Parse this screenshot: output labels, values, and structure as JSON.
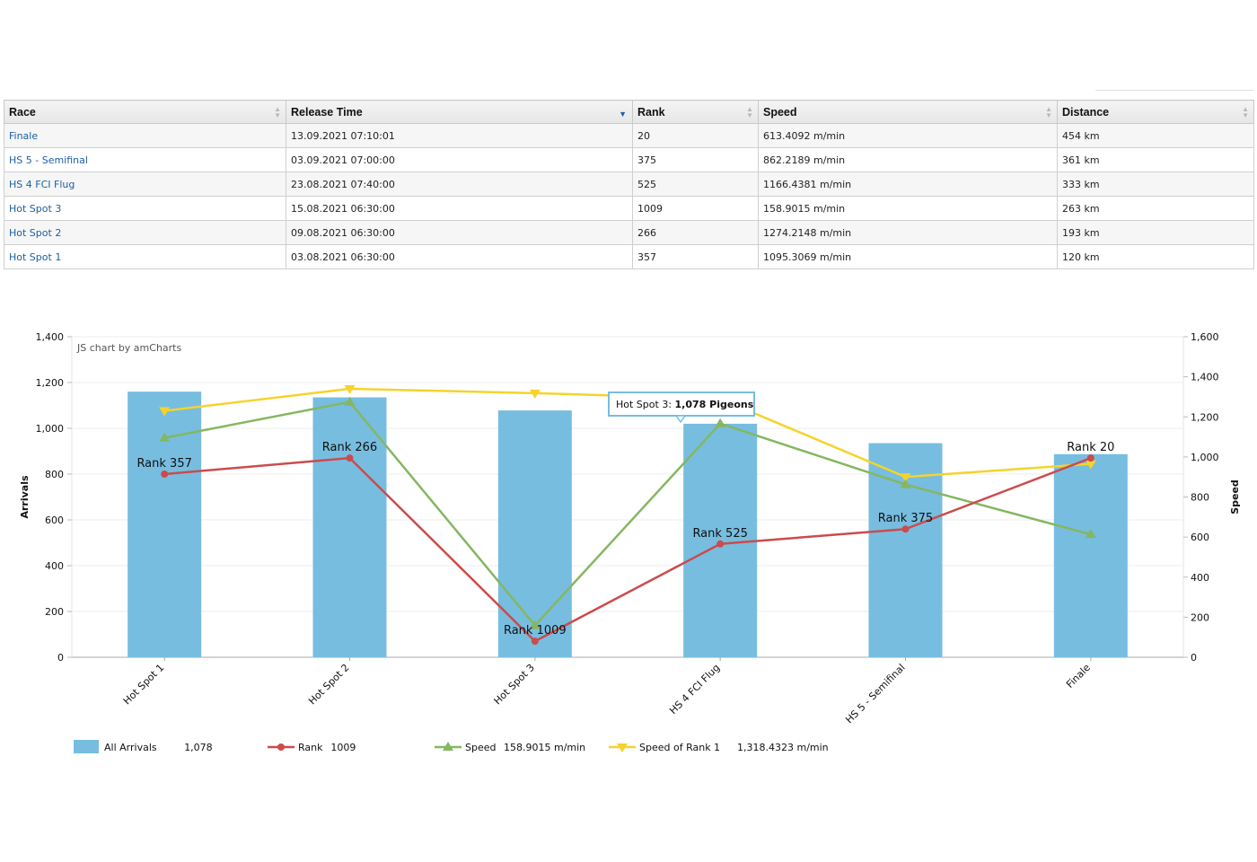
{
  "table": {
    "columns": [
      "Race",
      "Release Time",
      "Rank",
      "Speed",
      "Distance"
    ],
    "rows": [
      {
        "race": "Finale",
        "release": "13.09.2021 07:10:01",
        "rank": "20",
        "speed": "613.4092 m/min",
        "distance": "454 km"
      },
      {
        "race": "HS 5 - Semifinal",
        "release": "03.09.2021 07:00:00",
        "rank": "375",
        "speed": "862.2189 m/min",
        "distance": "361 km"
      },
      {
        "race": "HS 4 FCI Flug",
        "release": "23.08.2021 07:40:00",
        "rank": "525",
        "speed": "1166.4381 m/min",
        "distance": "333 km"
      },
      {
        "race": "Hot Spot 3",
        "release": "15.08.2021 06:30:00",
        "rank": "1009",
        "speed": "158.9015 m/min",
        "distance": "263 km"
      },
      {
        "race": "Hot Spot 2",
        "release": "09.08.2021 06:30:00",
        "rank": "266",
        "speed": "1274.2148 m/min",
        "distance": "193 km"
      },
      {
        "race": "Hot Spot 1",
        "release": "03.08.2021 06:30:00",
        "rank": "357",
        "speed": "1095.3069 m/min",
        "distance": "120 km"
      }
    ]
  },
  "chart_data": {
    "type": "bar",
    "credit": "JS chart by amCharts",
    "categories": [
      "Hot Spot 1",
      "Hot Spot 2",
      "Hot Spot 3",
      "HS 4 FCI Flug",
      "HS 5 - Semifinal",
      "Finale"
    ],
    "ylabel_left": "Arrivals",
    "ylabel_right": "Speed",
    "ylim_left": [
      0,
      1400
    ],
    "yticks_left": [
      "0",
      "200",
      "400",
      "600",
      "800",
      "1,000",
      "1,200",
      "1,400"
    ],
    "ylim_right": [
      0,
      1600
    ],
    "yticks_right": [
      "0",
      "200",
      "400",
      "600",
      "800",
      "1,000",
      "1,200",
      "1,400",
      "1,600"
    ],
    "series": [
      {
        "name": "All Arrivals",
        "type": "bar",
        "axis": "left",
        "color": "#77bde0",
        "values": [
          1160,
          1135,
          1078,
          1020,
          935,
          887
        ]
      },
      {
        "name": "Rank",
        "type": "line",
        "axis": "left",
        "color": "#cc4b4c",
        "marker": "circle",
        "values": [
          800,
          870,
          70,
          495,
          560,
          870
        ],
        "labels": [
          "Rank 357",
          "Rank 266",
          "Rank 1009",
          "Rank 525",
          "Rank 375",
          "Rank 20"
        ]
      },
      {
        "name": "Speed",
        "type": "line",
        "axis": "right",
        "color": "#84b761",
        "marker": "triangle-up",
        "values": [
          1095.3069,
          1274.2148,
          158.9015,
          1166.4381,
          862.2189,
          613.4092
        ]
      },
      {
        "name": "Speed of Rank 1",
        "type": "line",
        "axis": "right",
        "color": "#f6d32b",
        "marker": "triangle-down",
        "values": [
          1230,
          1340,
          1318.4323,
          1290,
          900,
          965
        ]
      }
    ],
    "tooltip": {
      "label": "Hot Spot 3:",
      "value": "1,078 Pigeons"
    },
    "legend": [
      {
        "name": "All Arrivals",
        "value": "1,078"
      },
      {
        "name": "Rank",
        "value": "1009"
      },
      {
        "name": "Speed",
        "value": "158.9015 m/min"
      },
      {
        "name": "Speed of Rank 1",
        "value": "1,318.4323 m/min"
      }
    ]
  }
}
